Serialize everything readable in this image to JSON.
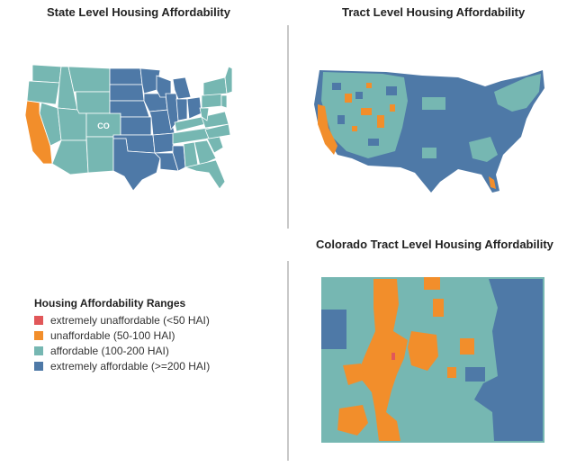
{
  "titles": {
    "state": "State Level Housing Affordability",
    "tract": "Tract Level Housing Affordability",
    "colorado": "Colorado Tract Level Housing Affordability"
  },
  "state_map_label": "CO",
  "legend": {
    "title": "Housing Affordability Ranges",
    "items": [
      {
        "label": "extremely unaffordable (<50 HAI)",
        "color": "#e15759"
      },
      {
        "label": "unaffordable (50-100 HAI)",
        "color": "#f28e2b"
      },
      {
        "label": "affordable (100-200 HAI)",
        "color": "#76b7b2"
      },
      {
        "label": "extremely affordable (>=200 HAI)",
        "color": "#4e79a7"
      }
    ]
  },
  "colors": {
    "unaffordable": "#f28e2b",
    "affordable": "#76b7b2",
    "extremely_affordable": "#4e79a7",
    "extremely_unaffordable": "#e15759",
    "border": "#ffffff"
  }
}
